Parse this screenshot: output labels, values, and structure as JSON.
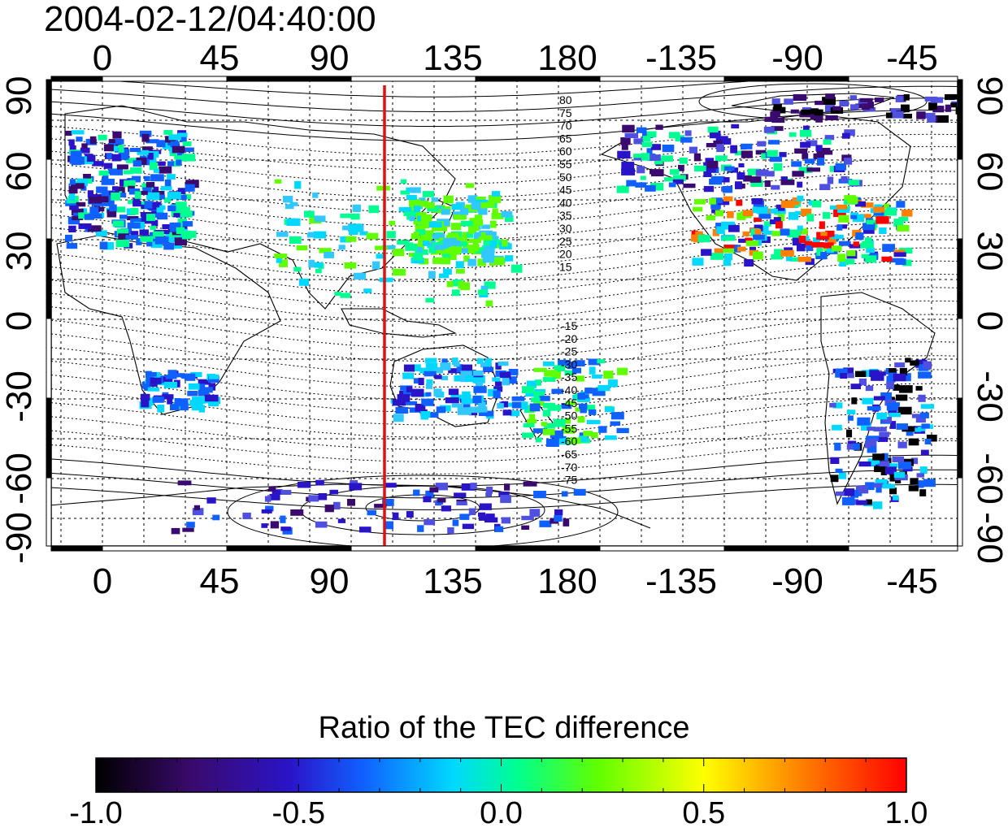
{
  "title": "2004-02-12/04:40:00",
  "map": {
    "top_axis_labels": [
      "0",
      "45",
      "90",
      "135",
      "180",
      "-135",
      "-90",
      "-45"
    ],
    "bottom_axis_labels": [
      "0",
      "45",
      "90",
      "135",
      "180",
      "-135",
      "-90",
      "-45"
    ],
    "left_axis_labels": [
      "90",
      "60",
      "30",
      "0",
      "-30",
      "-60",
      "-90"
    ],
    "right_axis_labels": [
      "90",
      "60",
      "30",
      "0",
      "-30",
      "-60",
      "-90"
    ],
    "contour_labels_north": [
      "80",
      "75",
      "70",
      "65",
      "60",
      "55",
      "50",
      "45",
      "40",
      "35",
      "30",
      "25",
      "20",
      "15"
    ],
    "contour_labels_south": [
      "-15",
      "-20",
      "-25",
      "-30",
      "-35",
      "-40",
      "-45",
      "-50",
      "-55",
      "-60",
      "-65",
      "-70",
      "-75"
    ],
    "terminator_color": "#dd1111",
    "terminator_longitude": 110
  },
  "colorbar": {
    "title": "Ratio of the TEC difference",
    "tick_labels": [
      "-1.0",
      "-0.5",
      "0.0",
      "0.5",
      "1.0"
    ],
    "range": [
      -1.0,
      1.0
    ]
  }
}
